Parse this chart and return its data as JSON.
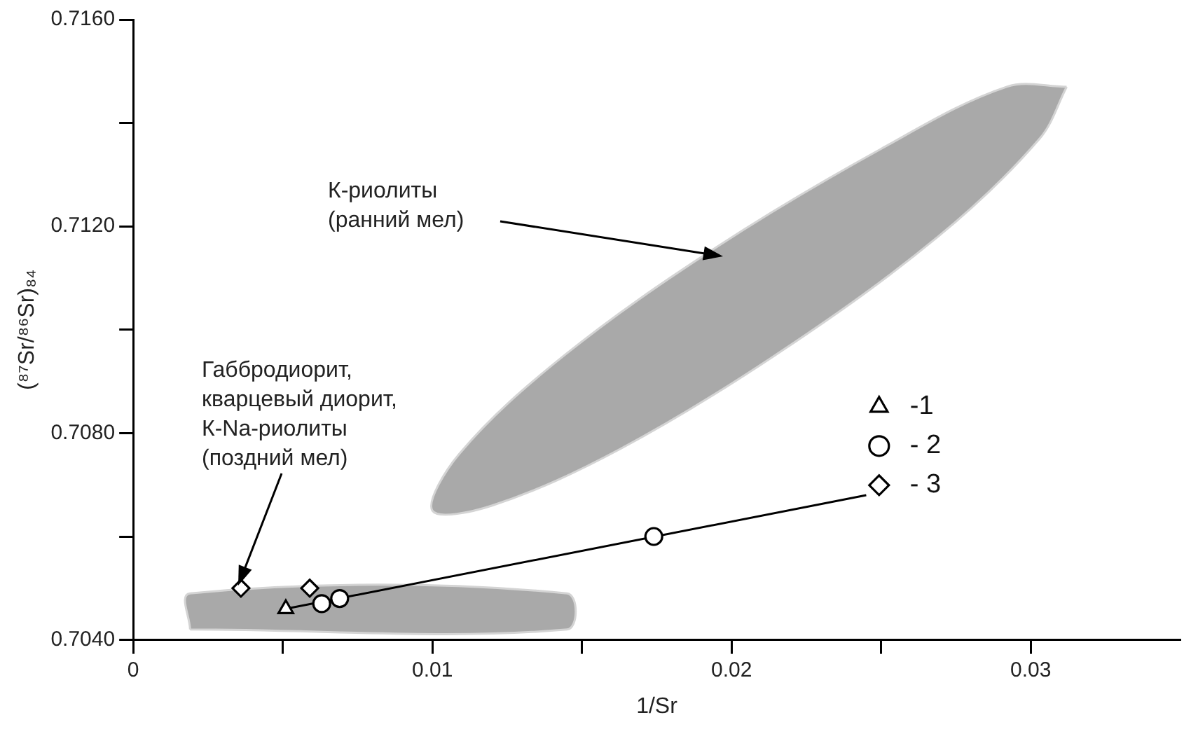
{
  "chart_data": {
    "type": "scatter",
    "xlabel": "1/Sr",
    "ylabel": "(⁸⁷Sr/⁸⁶Sr)₈₄",
    "xlim": [
      0,
      0.035
    ],
    "xticks": [
      0,
      {
        "value": 0.005,
        "label": null
      },
      0.01,
      {
        "value": 0.015,
        "label": null
      },
      0.02,
      {
        "value": 0.025,
        "label": null
      },
      0.03
    ],
    "ylim": [
      0.704,
      0.716
    ],
    "yticks": [
      {
        "value": 0.704,
        "label": "0.7040"
      },
      {
        "value": 0.706,
        "label": null
      },
      {
        "value": 0.708,
        "label": "0.7080"
      },
      {
        "value": 0.71,
        "label": null
      },
      {
        "value": 0.712,
        "label": "0.7120"
      },
      {
        "value": 0.714,
        "label": null
      },
      {
        "value": 0.716,
        "label": "0.7160"
      }
    ],
    "grid": false,
    "legend": "right",
    "series": [
      {
        "type": "area",
        "color": "#a9a9a9",
        "x": [
          0.0019,
          0.0145,
          0.0145,
          0.0019,
          0.0019
        ],
        "values": [
          0.7042,
          0.7042,
          0.7049,
          0.7049,
          0.7042
        ]
      },
      {
        "type": "area",
        "color": "#a9a9a9",
        "x": [
          0.0312,
          0.0303,
          0.0269,
          0.0217,
          0.0163,
          0.012,
          0.01,
          0.0109,
          0.0144,
          0.0195,
          0.025,
          0.0292,
          0.0312
        ],
        "values": [
          0.7147,
          0.7137,
          0.7118,
          0.7096,
          0.7077,
          0.7066,
          0.7065,
          0.7076,
          0.7095,
          0.7116,
          0.7135,
          0.7147,
          0.7147
        ]
      },
      {
        "type": "line",
        "color": "#000000",
        "x": [
          0.0051,
          0.0245
        ],
        "values": [
          0.7046,
          0.7068
        ]
      },
      {
        "name": "-1",
        "marker": "triangle",
        "color": "#000000",
        "x": [
          0.0051
        ],
        "values": [
          0.7046
        ]
      },
      {
        "name": "- 2",
        "marker": "circle",
        "color": "#000000",
        "x": [
          0.0063,
          0.0069,
          0.0174
        ],
        "values": [
          0.7047,
          0.7048,
          0.706
        ]
      },
      {
        "name": "- 3",
        "marker": "diamond",
        "color": "#000000",
        "x": [
          0.0036,
          0.0059
        ],
        "values": [
          0.705,
          0.705
        ]
      }
    ],
    "annotations": [
      "К-риолиты\n(ранний мел)",
      "Габбродиорит,\nкварцевый диорит,\nК-Na-риолиты\n(поздний мел)"
    ]
  }
}
